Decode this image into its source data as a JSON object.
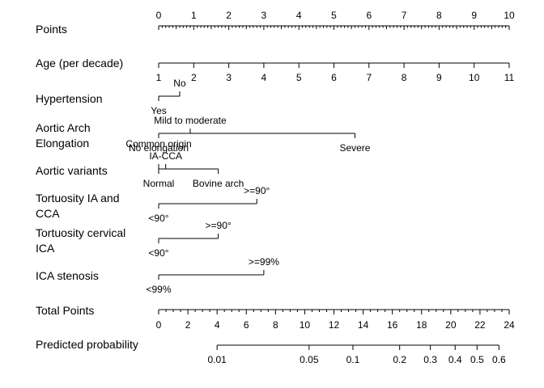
{
  "chart_data": {
    "type": "nomogram",
    "rows": [
      {
        "label": "Points",
        "kind": "points_scale",
        "range": [
          0,
          10
        ],
        "major_ticks": [
          0,
          1,
          2,
          3,
          4,
          5,
          6,
          7,
          8,
          9,
          10
        ],
        "minor_step": 0.1,
        "tick_labels": [
          "0",
          "1",
          "2",
          "3",
          "4",
          "5",
          "6",
          "7",
          "8",
          "9",
          "10"
        ]
      },
      {
        "label": "Age (per decade)",
        "kind": "continuous",
        "values": [
          1,
          2,
          3,
          4,
          5,
          6,
          7,
          8,
          9,
          10,
          11
        ],
        "tick_labels": [
          "1",
          "2",
          "3",
          "4",
          "5",
          "6",
          "7",
          "8",
          "9",
          "10",
          "11"
        ],
        "points": [
          0,
          1,
          2,
          3,
          4,
          5,
          6,
          7,
          8,
          9,
          10
        ]
      },
      {
        "label": "Hypertension",
        "kind": "categorical",
        "levels": [
          {
            "name": "Yes",
            "points": 0,
            "side": "below"
          },
          {
            "name": "No",
            "points": 0.6,
            "side": "above"
          }
        ]
      },
      {
        "label_lines": [
          "Aortic Arch",
          "Elongation"
        ],
        "kind": "categorical",
        "levels": [
          {
            "name": "No elongation",
            "points": 0,
            "side": "below"
          },
          {
            "name": "Mild to moderate",
            "points": 0.9,
            "side": "above"
          },
          {
            "name": "Severe",
            "points": 5.6,
            "side": "below"
          }
        ]
      },
      {
        "label": "Aortic variants",
        "kind": "categorical",
        "levels": [
          {
            "name": "Common origin",
            "points": 0,
            "side": "above_far"
          },
          {
            "name": "IA-CCA",
            "points": 0.2,
            "side": "above"
          },
          {
            "name": "Normal",
            "points": 0,
            "side": "below"
          },
          {
            "name": "Bovine arch",
            "points": 1.7,
            "side": "below"
          }
        ]
      },
      {
        "label_lines": [
          "Tortuosity IA and",
          "CCA"
        ],
        "kind": "categorical",
        "levels": [
          {
            "name": "<90°",
            "points": 0,
            "side": "below"
          },
          {
            "name": ">=90°",
            "points": 2.8,
            "side": "above"
          }
        ]
      },
      {
        "label_lines": [
          "Tortuosity cervical",
          "ICA"
        ],
        "kind": "categorical",
        "levels": [
          {
            "name": "<90°",
            "points": 0,
            "side": "below"
          },
          {
            "name": ">=90°",
            "points": 1.7,
            "side": "above"
          }
        ]
      },
      {
        "label": "ICA stenosis",
        "kind": "categorical",
        "levels": [
          {
            "name": "<99%",
            "points": 0,
            "side": "below"
          },
          {
            "name": ">=99%",
            "points": 3.0,
            "side": "above"
          }
        ]
      },
      {
        "label": "Total Points",
        "kind": "total_scale",
        "range": [
          0,
          24
        ],
        "major_ticks": [
          0,
          2,
          4,
          6,
          8,
          10,
          12,
          14,
          16,
          18,
          20,
          22,
          24
        ],
        "minor_step": 0.5,
        "tick_labels": [
          "0",
          "2",
          "4",
          "6",
          "8",
          "10",
          "12",
          "14",
          "16",
          "18",
          "20",
          "22",
          "24"
        ]
      },
      {
        "label": "Predicted probability",
        "kind": "probability",
        "ticks": [
          {
            "label": "0.01",
            "total_points": 4.0
          },
          {
            "label": "0.05",
            "total_points": 10.3
          },
          {
            "label": "0.1",
            "total_points": 13.3
          },
          {
            "label": "0.2",
            "total_points": 16.5
          },
          {
            "label": "0.3",
            "total_points": 18.6
          },
          {
            "label": "0.4",
            "total_points": 20.3
          },
          {
            "label": "0.5",
            "total_points": 21.8
          },
          {
            "label": "0.6",
            "total_points": 23.3
          }
        ]
      }
    ]
  }
}
